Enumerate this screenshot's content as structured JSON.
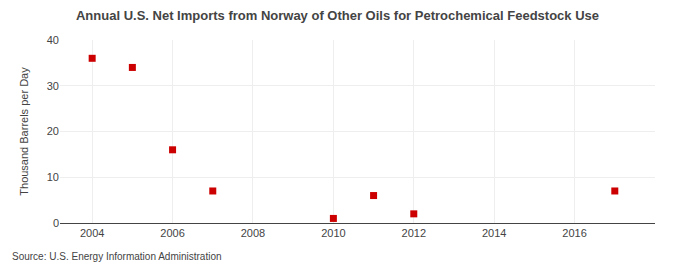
{
  "chart_data": {
    "type": "scatter",
    "title": "Annual U.S. Net Imports from Norway of Other Oils for Petrochemical Feedstock Use",
    "ylabel": "Thousand Barrels per Day",
    "annotations": [
      "Source: U.S. Energy Information Administration"
    ],
    "x": [
      2004,
      2005,
      2006,
      2007,
      2010,
      2011,
      2012,
      2017
    ],
    "values": [
      36,
      34,
      16,
      7,
      1,
      6,
      2,
      7
    ],
    "color": "#cc0000",
    "marker": "square",
    "xlim": [
      2003.2,
      2018
    ],
    "ylim": [
      0,
      40
    ],
    "xticks": [
      2004,
      2006,
      2008,
      2010,
      2012,
      2014,
      2016
    ],
    "yticks": [
      0,
      10,
      20,
      30,
      40
    ],
    "grid": true
  }
}
